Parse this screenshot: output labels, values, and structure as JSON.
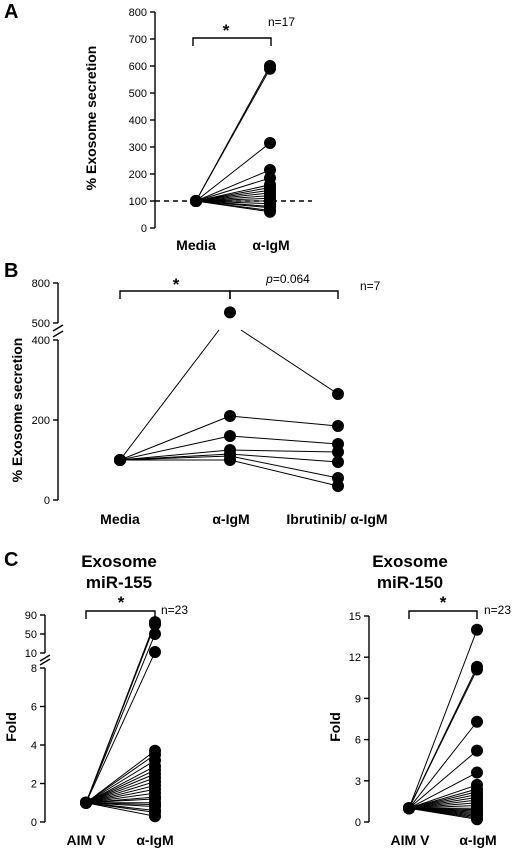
{
  "chart_data": [
    {
      "type": "scatter",
      "panel": "A",
      "ylabel": "% Exosome secretion",
      "ylim": [
        0,
        800
      ],
      "yticks": [
        "0",
        "100",
        "200",
        "300",
        "400",
        "500",
        "600",
        "700",
        "800"
      ],
      "categories": [
        "Media",
        "α-IgM"
      ],
      "reference_line": 100,
      "n_label": "n=17",
      "significance": "*",
      "pairs": [
        [
          100,
          600
        ],
        [
          100,
          590
        ],
        [
          100,
          315
        ],
        [
          100,
          215
        ],
        [
          100,
          185
        ],
        [
          100,
          160
        ],
        [
          100,
          150
        ],
        [
          100,
          140
        ],
        [
          100,
          130
        ],
        [
          100,
          120
        ],
        [
          100,
          110
        ],
        [
          100,
          100
        ],
        [
          100,
          90
        ],
        [
          100,
          80
        ],
        [
          100,
          75
        ],
        [
          100,
          65
        ],
        [
          100,
          60
        ]
      ]
    },
    {
      "type": "scatter",
      "panel": "B",
      "ylabel": "% Exosome secretion",
      "yticks_lower": [
        "0",
        "200",
        "400"
      ],
      "yticks_upper": [
        "500",
        "800"
      ],
      "ylim_lower": [
        0,
        400
      ],
      "ylim_upper": [
        500,
        800
      ],
      "categories": [
        "Media",
        "α-IgM",
        "Ibrutinib/ α-IgM"
      ],
      "n_label": "n=7",
      "significance_1": "*",
      "significance_2_prefix": "p",
      "significance_2_value": "=0.064",
      "triples": [
        [
          100,
          580,
          265
        ],
        [
          100,
          210,
          185
        ],
        [
          100,
          160,
          140
        ],
        [
          100,
          125,
          120
        ],
        [
          100,
          115,
          95
        ],
        [
          100,
          110,
          55
        ],
        [
          100,
          100,
          35
        ]
      ]
    },
    {
      "type": "scatter",
      "panel": "C",
      "title_line1": "Exosome",
      "title_line2": "miR-155",
      "ylabel": "Fold",
      "yticks_lower": [
        "0",
        "2",
        "4",
        "6",
        "8"
      ],
      "yticks_upper": [
        "10",
        "50",
        "90"
      ],
      "ylim_lower": [
        0,
        8
      ],
      "ylim_upper": [
        10,
        90
      ],
      "categories": [
        "AIM V",
        "α-IgM"
      ],
      "n_label": "n=23",
      "significance": "*",
      "pairs": [
        [
          1,
          75
        ],
        [
          1,
          70
        ],
        [
          1,
          50
        ],
        [
          1,
          12
        ],
        [
          1,
          3.7
        ],
        [
          1,
          3.5
        ],
        [
          1,
          3.2
        ],
        [
          1,
          2.9
        ],
        [
          1,
          2.7
        ],
        [
          1,
          2.5
        ],
        [
          1,
          2.3
        ],
        [
          1,
          2.1
        ],
        [
          1,
          1.9
        ],
        [
          1,
          1.7
        ],
        [
          1,
          1.5
        ],
        [
          1,
          1.3
        ],
        [
          1,
          1.2
        ],
        [
          1,
          1.0
        ],
        [
          1,
          0.9
        ],
        [
          1,
          0.8
        ],
        [
          1,
          0.6
        ],
        [
          1,
          0.5
        ],
        [
          1,
          0.3
        ]
      ]
    },
    {
      "type": "scatter",
      "panel": "",
      "title_line1": "Exosome",
      "title_line2": "miR-150",
      "ylabel": "Fold",
      "ylim": [
        0,
        15
      ],
      "yticks": [
        "0",
        "3",
        "6",
        "9",
        "12",
        "15"
      ],
      "categories": [
        "AIM V",
        "α-IgM"
      ],
      "n_label": "n=23",
      "significance": "*",
      "pairs": [
        [
          1,
          14.0
        ],
        [
          1,
          11.3
        ],
        [
          1,
          11.1
        ],
        [
          1,
          7.3
        ],
        [
          1,
          5.2
        ],
        [
          1,
          3.6
        ],
        [
          1,
          2.7
        ],
        [
          1,
          2.4
        ],
        [
          1,
          2.2
        ],
        [
          1,
          2.0
        ],
        [
          1,
          1.8
        ],
        [
          1,
          1.6
        ],
        [
          1,
          1.4
        ],
        [
          1,
          1.2
        ],
        [
          1,
          1.0
        ],
        [
          1,
          0.9
        ],
        [
          1,
          0.8
        ],
        [
          1,
          0.7
        ],
        [
          1,
          0.6
        ],
        [
          1,
          0.5
        ],
        [
          1,
          0.4
        ],
        [
          1,
          0.3
        ],
        [
          1,
          0.2
        ]
      ]
    }
  ]
}
